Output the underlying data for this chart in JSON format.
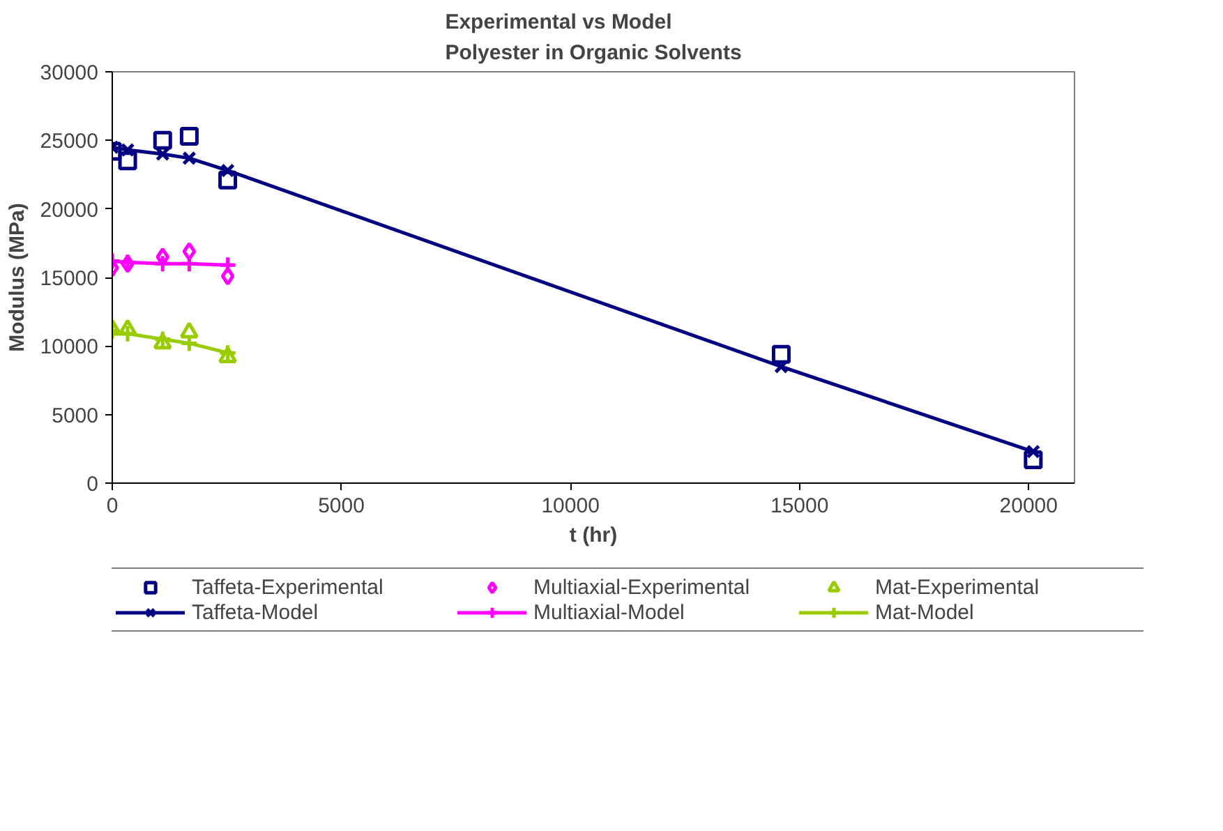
{
  "chart_data": {
    "type": "line",
    "title": "Experimental vs Model\nPolyester in Organic Solvents",
    "xlabel": "t (hr)",
    "ylabel": "Modulus (MPa)",
    "x": [
      0,
      336,
      1100,
      1680,
      2520,
      14600,
      20100
    ],
    "xlim": [
      0,
      21000
    ],
    "xticks": [
      0,
      5000,
      10000,
      15000,
      20000
    ],
    "ylim": [
      0,
      30000
    ],
    "yticks": [
      0,
      5000,
      10000,
      15000,
      20000,
      25000,
      30000
    ],
    "grid": false,
    "legend": "bottom",
    "line_style": "solid",
    "series": [
      {
        "name": "Taffeta-Experimental",
        "type": "scatter",
        "marker": "square",
        "color": "#000080",
        "values": [
          24200,
          23500,
          25000,
          25300,
          22100,
          9400,
          1700
        ]
      },
      {
        "name": "Taffeta-Model",
        "marker": "x",
        "color": "#000080",
        "values": [
          24500,
          24300,
          24000,
          23700,
          22800,
          8500,
          2300
        ]
      },
      {
        "name": "Multiaxial-Experimental",
        "type": "scatter",
        "marker": "diamond",
        "color": "#ff00ff",
        "values": [
          15700,
          16000,
          16500,
          16900,
          15100,
          null,
          null
        ]
      },
      {
        "name": "Multiaxial-Model",
        "marker": "cross",
        "color": "#ff00ff",
        "values": [
          16200,
          16100,
          16000,
          16000,
          15900,
          null,
          null
        ]
      },
      {
        "name": "Mat-Experimental",
        "type": "scatter",
        "marker": "triangle",
        "color": "#99cc00",
        "values": [
          11200,
          11200,
          10200,
          11000,
          9200,
          null,
          null
        ]
      },
      {
        "name": "Mat-Model",
        "marker": "cross",
        "color": "#99cc00",
        "values": [
          11100,
          10900,
          10500,
          10200,
          9500,
          null,
          null
        ]
      }
    ]
  }
}
